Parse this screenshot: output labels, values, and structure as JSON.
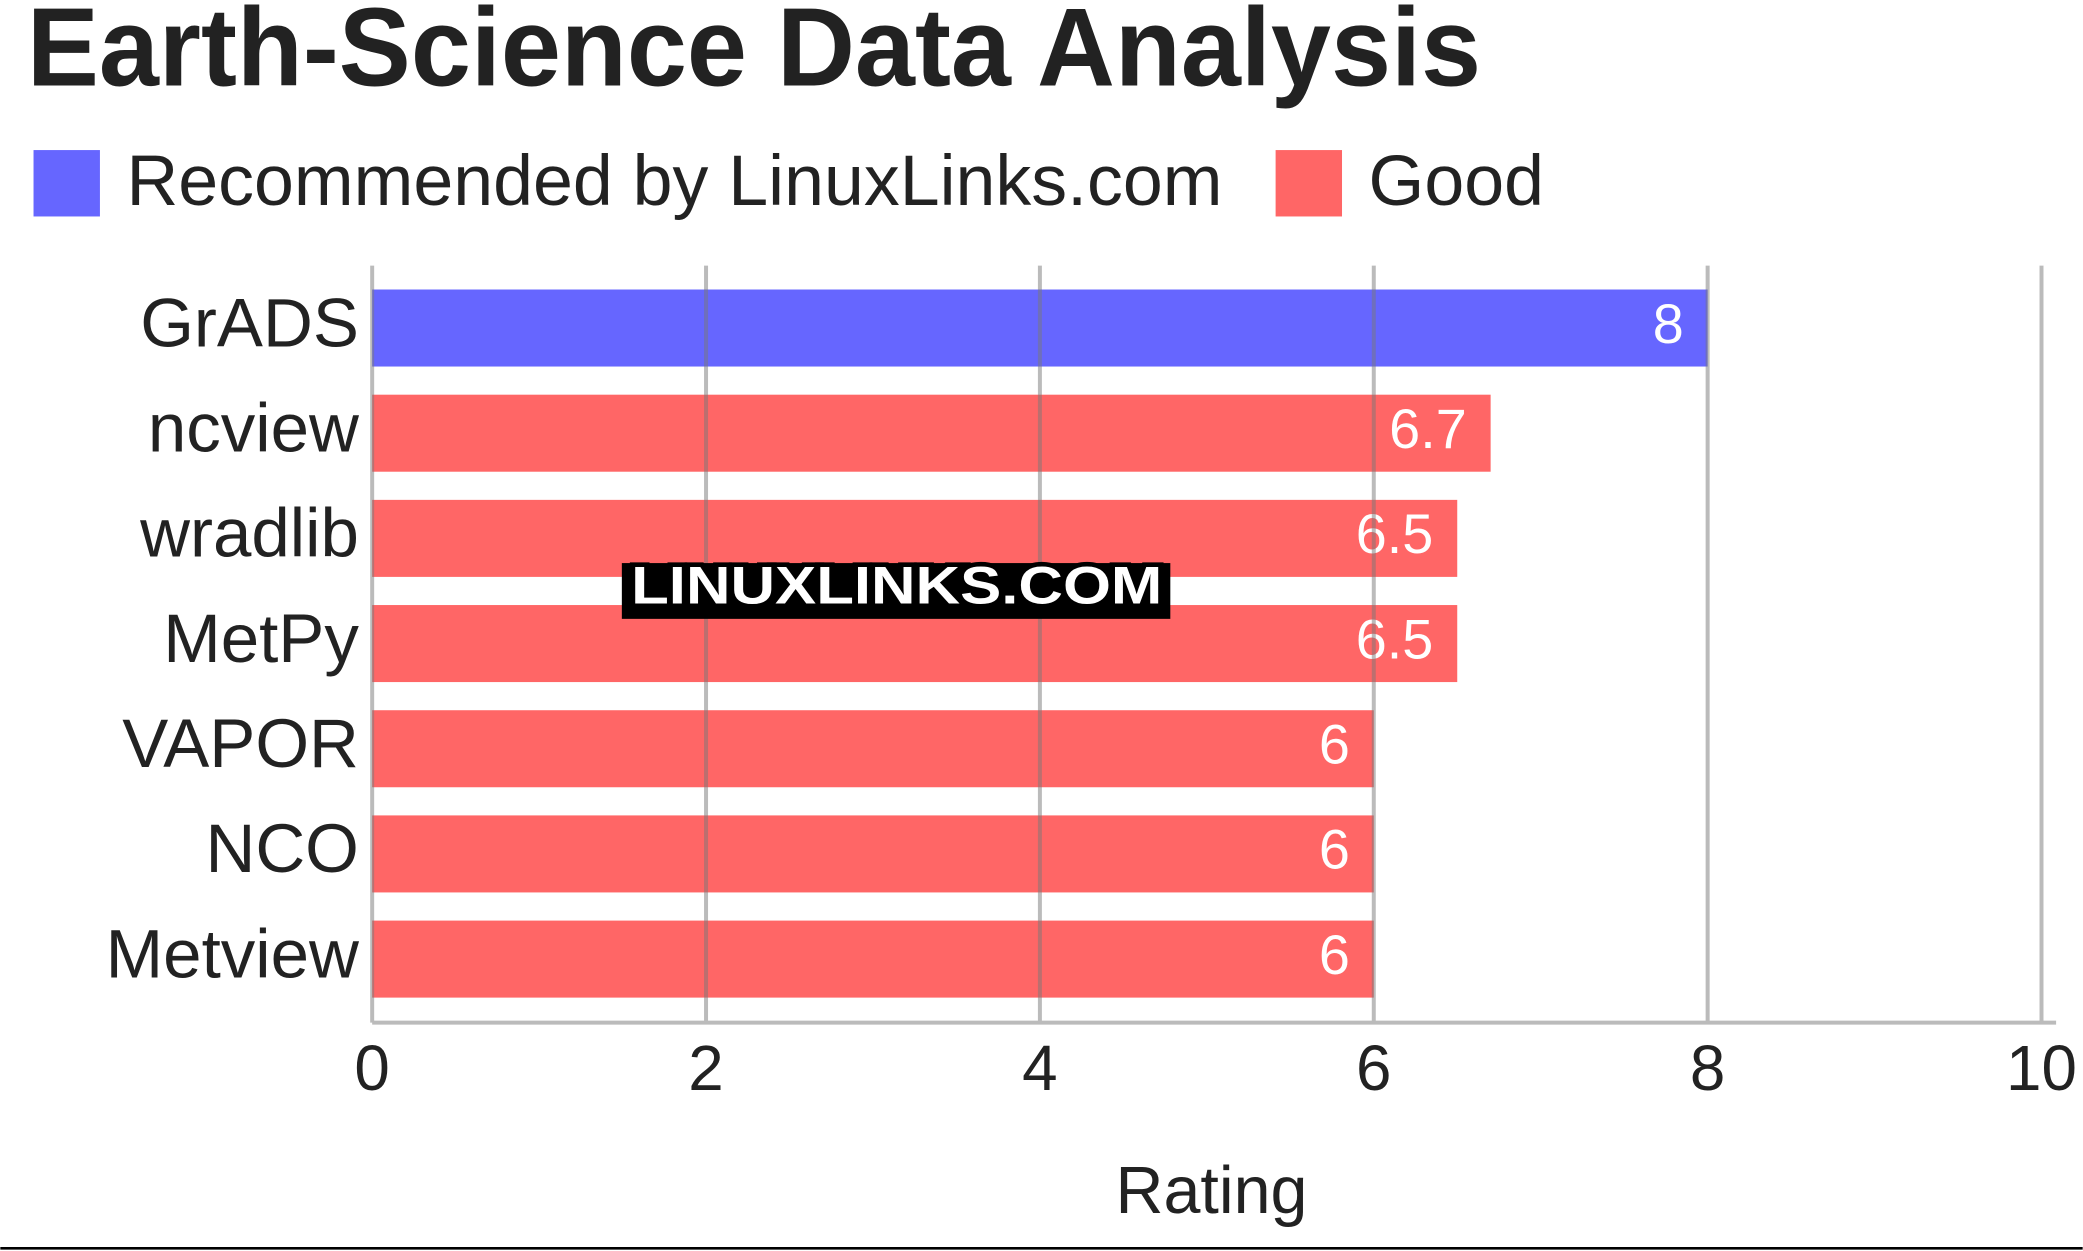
{
  "chart_data": {
    "type": "hbar",
    "title": "Earth-Science Data Analysis",
    "categories": [
      "GrADS",
      "ncview",
      "wradlib",
      "MetPy",
      "VAPOR",
      "NCO",
      "Metview"
    ],
    "series": [
      {
        "name": "Recommended by LinuxLinks.com",
        "color": "#6666ff",
        "values": [
          8,
          null,
          null,
          null,
          null,
          null,
          null
        ]
      },
      {
        "name": "Good",
        "color": "#ff6666",
        "values": [
          null,
          6.7,
          6.5,
          6.5,
          6,
          6,
          6
        ]
      }
    ],
    "xlabel": "Rating",
    "xlim": [
      0,
      10
    ],
    "xticks": [
      0,
      2,
      4,
      6,
      8,
      10
    ],
    "grid": true,
    "watermark": "LINUXLINKS.COM"
  }
}
